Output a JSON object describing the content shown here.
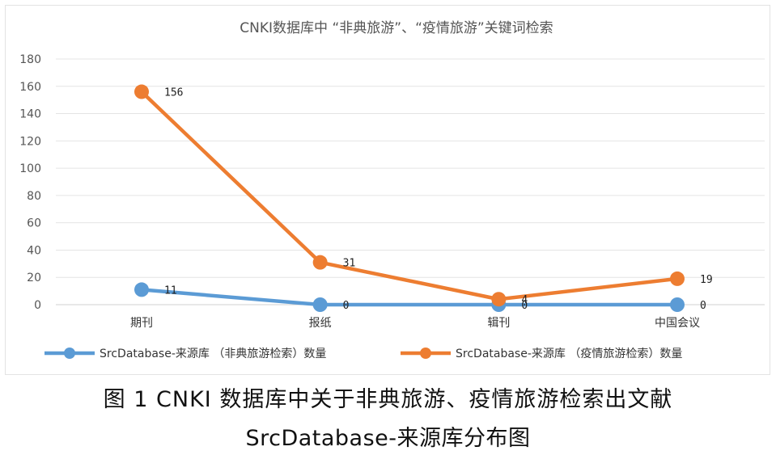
{
  "chart_data": {
    "type": "line",
    "title": "CNKI数据库中 “非典旅游”、“疫情旅游”关键词检索",
    "categories": [
      "期刊",
      "报纸",
      "辑刊",
      "中国会议"
    ],
    "series": [
      {
        "name": "SrcDatabase-来源库 （非典旅游检索）数量",
        "values": [
          11,
          0,
          0,
          0
        ],
        "labels": [
          "11",
          "0",
          "0",
          "0"
        ],
        "color": "#5b9bd5"
      },
      {
        "name": "SrcDatabase-来源库 （疫情旅游检索）数量",
        "values": [
          156,
          31,
          4,
          19
        ],
        "labels": [
          "156",
          "31",
          "4",
          "19"
        ],
        "color": "#ed7d31"
      }
    ],
    "ylim": [
      0,
      180
    ],
    "yticks": [
      "0",
      "20",
      "40",
      "60",
      "80",
      "100",
      "120",
      "140",
      "160",
      "180"
    ],
    "xlabel": "",
    "ylabel": "",
    "grid": true,
    "legend_position": "bottom"
  },
  "caption": {
    "line1": "图 1   CNKI 数据库中关于非典旅游、疫情旅游检索出文献",
    "line2": "SrcDatabase-来源库分布图"
  }
}
